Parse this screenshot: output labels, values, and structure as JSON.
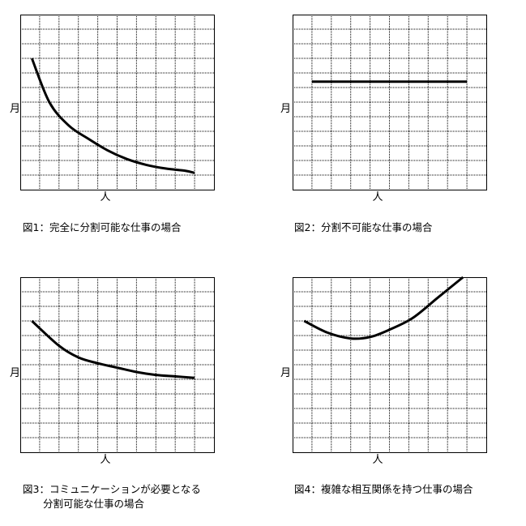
{
  "chart_data": [
    {
      "type": "line",
      "title": "図1：完全に分割可能な仕事の場合",
      "xlabel": "人",
      "ylabel": "月",
      "xlim": [
        0,
        10
      ],
      "ylim": [
        0,
        12
      ],
      "grid": true,
      "x": [
        0.6,
        1.5,
        2.5,
        3.5,
        4.5,
        5.5,
        6.5,
        7.5,
        8.5,
        9.0
      ],
      "values": [
        9.0,
        6.0,
        4.4,
        3.5,
        2.7,
        2.1,
        1.7,
        1.45,
        1.3,
        1.15
      ]
    },
    {
      "type": "line",
      "title": "図2：分割不可能な仕事の場合",
      "xlabel": "人",
      "ylabel": "月",
      "xlim": [
        0,
        10
      ],
      "ylim": [
        0,
        12
      ],
      "grid": true,
      "x": [
        1.0,
        9.0
      ],
      "values": [
        7.4,
        7.4
      ]
    },
    {
      "type": "line",
      "title": "図3：コミュニケーションが必要となる",
      "subtitle": "分割可能な仕事の場合",
      "xlabel": "人",
      "ylabel": "月",
      "xlim": [
        0,
        10
      ],
      "ylim": [
        0,
        12
      ],
      "grid": true,
      "x": [
        0.6,
        2.0,
        3.0,
        4.0,
        5.0,
        6.0,
        7.0,
        8.0,
        9.0
      ],
      "values": [
        9.0,
        7.3,
        6.5,
        6.1,
        5.8,
        5.5,
        5.3,
        5.2,
        5.1
      ]
    },
    {
      "type": "line",
      "title": "図4：複雑な相互関係を持つ仕事の場合",
      "xlabel": "人",
      "ylabel": "月",
      "xlim": [
        0,
        10
      ],
      "ylim": [
        0,
        12
      ],
      "grid": true,
      "x": [
        0.6,
        1.8,
        3.0,
        4.0,
        5.0,
        6.2,
        7.5,
        8.8
      ],
      "values": [
        9.0,
        8.2,
        7.8,
        7.9,
        8.4,
        9.2,
        10.6,
        12.0
      ]
    }
  ],
  "style": {
    "line_color": "#000000",
    "grid_color": "#000000",
    "background": "#ffffff"
  }
}
